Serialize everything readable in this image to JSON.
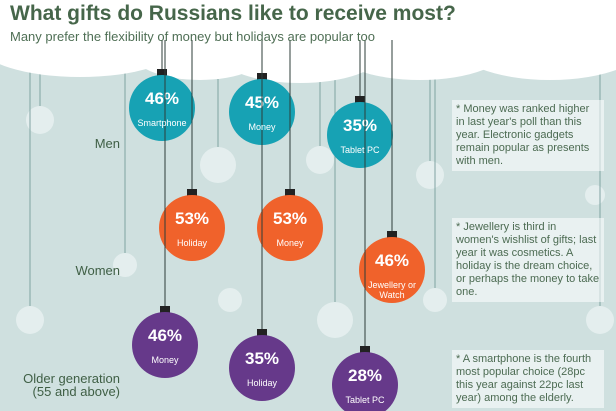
{
  "title": "What gifts do Russians like to receive most?",
  "subtitle": "Many prefer the flexibility of money but holidays are popular too",
  "chart_data": {
    "type": "ornaments",
    "groups": [
      {
        "name": "Men",
        "color": "#17a2b4",
        "note": "* Money was ranked higher in last year's poll than this year. Electronic gadgets remain popular as presents with men.",
        "categories": [
          "Smartphone",
          "Money",
          "Tablet PC"
        ],
        "values": [
          46,
          45,
          35
        ],
        "value_labels": [
          "46%",
          "45%",
          "35%"
        ]
      },
      {
        "name": "Women",
        "color": "#f0622b",
        "note": "* Jewellery is third in women's wishlist of gifts; last year it was cosmetics. A holiday is the dream choice, or perhaps the money to take one.",
        "categories": [
          "Holiday",
          "Money",
          "Jewellery or Watch"
        ],
        "values": [
          53,
          53,
          46
        ],
        "value_labels": [
          "53%",
          "53%",
          "46%"
        ]
      },
      {
        "name": "Older generation (55 and above)",
        "color": "#66398a",
        "note": "* A smartphone is the fourth most popular choice (28pc this year against 22pc last year) among the elderly.",
        "categories": [
          "Money",
          "Holiday",
          "Tablet PC"
        ],
        "values": [
          46,
          35,
          28
        ],
        "value_labels": [
          "46%",
          "35%",
          "28%"
        ]
      }
    ]
  }
}
